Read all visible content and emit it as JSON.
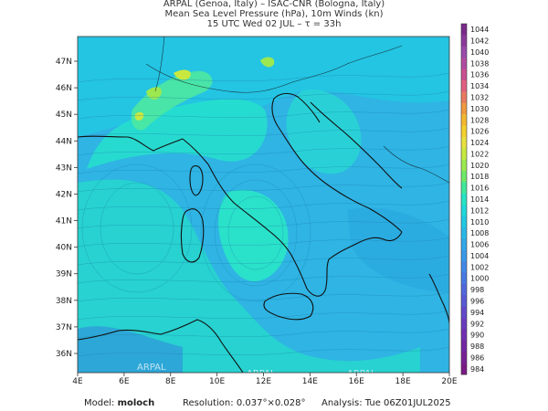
{
  "header": {
    "line1": "ARPAL (Genoa, Italy)  –  ISAC-CNR (Bologna, Italy)",
    "line2": "Mean Sea Level Pressure (hPa), 10m Winds (kn)",
    "line3": "15 UTC Wed 02 JUL  –  τ = 33h"
  },
  "map": {
    "lon_ticks": [
      "4E",
      "6E",
      "8E",
      "10E",
      "12E",
      "14E",
      "16E",
      "18E",
      "20E"
    ],
    "lat_ticks": [
      "47N",
      "46N",
      "45N",
      "44N",
      "43N",
      "42N",
      "41N",
      "40N",
      "39N",
      "38N",
      "37N",
      "36N"
    ],
    "watermark": "ARPAL",
    "sea_color": "#2fb4e4",
    "high_color": "#26e4c4"
  },
  "colorbar": {
    "labels": [
      "1044",
      "1042",
      "1040",
      "1038",
      "1036",
      "1034",
      "1032",
      "1030",
      "1028",
      "1026",
      "1024",
      "1022",
      "1020",
      "1018",
      "1016",
      "1014",
      "1012",
      "1010",
      "1008",
      "1006",
      "1004",
      "1002",
      "1000",
      "998",
      "996",
      "994",
      "992",
      "990",
      "988",
      "986",
      "984"
    ],
    "colors": [
      "#7a2a8a",
      "#8a3a9a",
      "#9a4aaa",
      "#b04aa0",
      "#c85090",
      "#e06080",
      "#e87a60",
      "#ee9a40",
      "#f2b830",
      "#f4d030",
      "#e8e040",
      "#c8e840",
      "#9ce850",
      "#6ee868",
      "#40e89a",
      "#26e4c4",
      "#20d8da",
      "#22c8e2",
      "#2ab8e6",
      "#32a8e8",
      "#3a98e8",
      "#4288e6",
      "#4a78e2",
      "#5268dc",
      "#5a58d4",
      "#6248ca",
      "#6a3cbe",
      "#7030b0",
      "#7426a2",
      "#782094",
      "#7a1a86"
    ]
  },
  "footer": {
    "model_label": "Model:",
    "model_value": "moloch",
    "resolution_label": "Resolution:",
    "resolution_value": "0.037°×0.028°",
    "analysis_label": "Analysis:",
    "analysis_value": "Tue 06Z01JUL2025"
  }
}
